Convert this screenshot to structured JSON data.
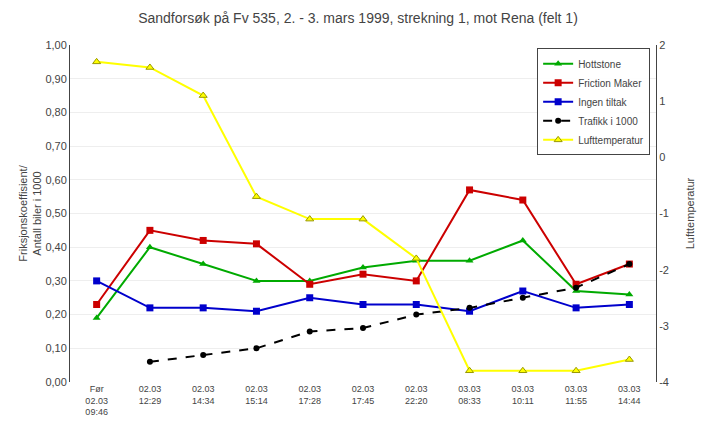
{
  "chart_data": {
    "type": "line",
    "title": "Sandforsøk på Fv 535, 2. - 3. mars 1999, strekning 1, mot Rena (felt 1)",
    "categories": [
      "Før\n02.03\n09:46",
      "02.03\n12:29",
      "02.03\n14:34",
      "02.03\n15:14",
      "02.03\n17:28",
      "02.03\n17:45",
      "02.03\n22:20",
      "03.03\n08:33",
      "03.03\n10:11",
      "03.03\n11:55",
      "03.03\n14:44"
    ],
    "y_label": "Friksjonskoeffisient/\nAntall biler i 1000",
    "y2_label": "Lufttemperatur",
    "ylim": [
      0.0,
      1.0
    ],
    "yticks": [
      {
        "value": 0.0,
        "label": "0,00"
      },
      {
        "value": 0.1,
        "label": "0,10"
      },
      {
        "value": 0.2,
        "label": "0,20"
      },
      {
        "value": 0.3,
        "label": "0,30"
      },
      {
        "value": 0.4,
        "label": "0,40"
      },
      {
        "value": 0.5,
        "label": "0,50"
      },
      {
        "value": 0.6,
        "label": "0,60"
      },
      {
        "value": 0.7,
        "label": "0,70"
      },
      {
        "value": 0.8,
        "label": "0,80"
      },
      {
        "value": 0.9,
        "label": "0,90"
      },
      {
        "value": 1.0,
        "label": "1,00"
      }
    ],
    "y2lim": [
      -4,
      2
    ],
    "y2ticks": [
      -4,
      -3,
      -2,
      -1,
      0,
      1,
      2
    ],
    "grid": true,
    "legend": "upper right",
    "series": [
      {
        "name": "Hottstone",
        "color": "#00aa00",
        "marker": "triangle-up",
        "line_style": "solid",
        "values": [
          0.19,
          0.4,
          0.35,
          0.3,
          0.3,
          0.34,
          0.36,
          0.36,
          0.42,
          0.27,
          0.26
        ]
      },
      {
        "name": "Friction Maker",
        "color": "#cc0000",
        "marker": "square",
        "line_style": "solid",
        "values": [
          0.23,
          0.45,
          0.42,
          0.41,
          0.29,
          0.32,
          0.3,
          0.57,
          0.54,
          0.29,
          0.35
        ]
      },
      {
        "name": "Ingen tiltak",
        "color": "#0000cc",
        "marker": "square",
        "line_style": "solid",
        "values": [
          0.3,
          0.22,
          0.22,
          0.21,
          0.25,
          0.23,
          0.23,
          0.21,
          0.27,
          0.22,
          0.23
        ]
      },
      {
        "name": "Trafikk i 1000",
        "color": "#000000",
        "marker": "circle",
        "line_style": "dash",
        "values": [
          null,
          0.06,
          0.08,
          0.1,
          0.15,
          0.16,
          0.2,
          0.22,
          0.25,
          0.28,
          0.35
        ]
      },
      {
        "name": "Lufttemperatur",
        "color": "#ffff00",
        "marker": "triangle-up",
        "line_style": "solid",
        "axis": "y2",
        "values": [
          1.7,
          1.6,
          1.1,
          -0.7,
          -1.1,
          -1.1,
          -1.8,
          -3.8,
          -3.8,
          -3.8,
          -3.6
        ]
      }
    ]
  }
}
